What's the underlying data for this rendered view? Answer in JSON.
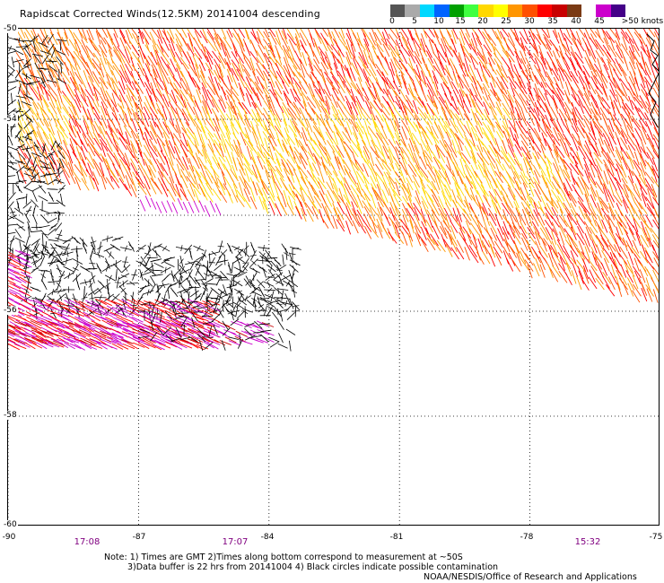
{
  "title": "Rapidscat Corrected Winds(12.5KM) 20141004 descending",
  "colorbar": {
    "colors": [
      "#555555",
      "#aaaaaa",
      "#00d8ff",
      "#0064ff",
      "#00a000",
      "#40ff40",
      "#ffd800",
      "#ffff00",
      "#ff9600",
      "#ff5000",
      "#ff0000",
      "#c80000",
      "#7a3a14",
      "#ffffff",
      "#cc00cc",
      "#440088"
    ],
    "labels": [
      "0",
      "5",
      "10",
      "15",
      "20",
      "25",
      "30",
      "35",
      "40",
      "45",
      ">50 knots"
    ]
  },
  "axes": {
    "lat_labels": [
      "-50",
      "-54",
      "-56",
      "-58",
      "-60"
    ],
    "lon_labels": [
      "-90",
      "-87",
      "-84",
      "-81",
      "-78",
      "-75"
    ]
  },
  "chart_data": {
    "type": "map",
    "lon_range": [
      -90,
      -75
    ],
    "lat_range": [
      -60,
      -50
    ],
    "grid": true,
    "legend_placement": "top-right",
    "wind_speed_colors": [
      "#ffd800",
      "#ff9600",
      "#ff5000",
      "#ff0000",
      "#c80000",
      "#cc00cc",
      "#000000"
    ]
  },
  "times": [
    "17:08",
    "17:07",
    "15:32"
  ],
  "note": {
    "line1": "Note: 1) Times are GMT 2)Times along bottom correspond to measurement at ~50S",
    "line2": "3)Data buffer is 22 hrs from 20141004 4) Black circles indicate possible contamination"
  },
  "credit": "NOAA/NESDIS/Office of Research and Applications"
}
